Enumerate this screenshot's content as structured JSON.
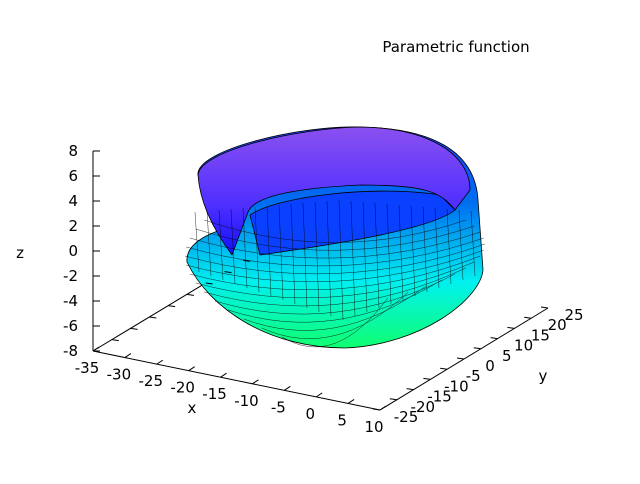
{
  "chart_data": {
    "type": "surface",
    "title": "Parametric function",
    "xlabel": "x",
    "ylabel": "y",
    "zlabel": "z",
    "xlim": [
      -35,
      10
    ],
    "ylim": [
      -25,
      25
    ],
    "zlim": [
      -8,
      8
    ],
    "x_ticks": [
      "-35",
      "-30",
      "-25",
      "-20",
      "-15",
      "-10",
      "-5",
      "0",
      "5",
      "10"
    ],
    "y_ticks": [
      "-25",
      "-20",
      "-15",
      "-10",
      "-5",
      "0",
      "5",
      "10",
      "15",
      "20",
      "25"
    ],
    "z_ticks": [
      "8",
      "6",
      "4",
      "2",
      "0",
      "-2",
      "-4",
      "-6",
      "-8"
    ],
    "grid": false,
    "colors": {
      "top": "#8a4ff0",
      "mid": "#0022ff",
      "low": "#00ffee",
      "bottom": "#00ff66"
    }
  }
}
